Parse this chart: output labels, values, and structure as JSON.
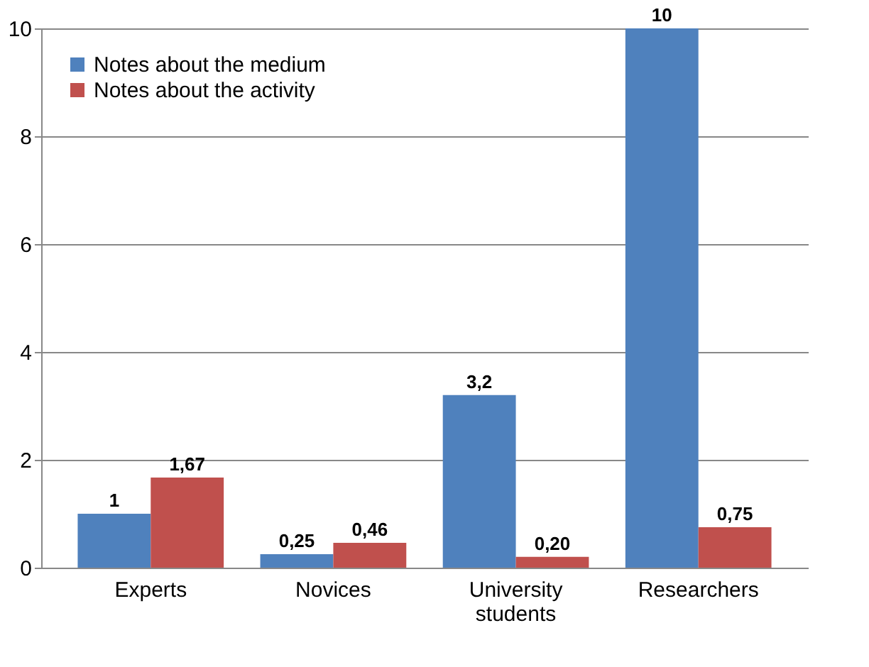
{
  "chart_data": {
    "type": "bar",
    "categories": [
      "Experts",
      "Novices",
      "University students",
      "Researchers"
    ],
    "series": [
      {
        "name": "Notes about the medium",
        "color": "#4f81bd",
        "values": [
          1,
          0.25,
          3.2,
          10
        ],
        "value_labels": [
          "1",
          "0,25",
          "3,2",
          "10"
        ]
      },
      {
        "name": "Notes about the activity",
        "color": "#c0504d",
        "values": [
          1.67,
          0.46,
          0.2,
          0.75
        ],
        "value_labels": [
          "1,67",
          "0,46",
          "0,20",
          "0,75"
        ]
      }
    ],
    "ylim": [
      0,
      10
    ],
    "yticks": [
      0,
      2,
      4,
      6,
      8,
      10
    ],
    "grid": "y",
    "legend": "top left"
  }
}
